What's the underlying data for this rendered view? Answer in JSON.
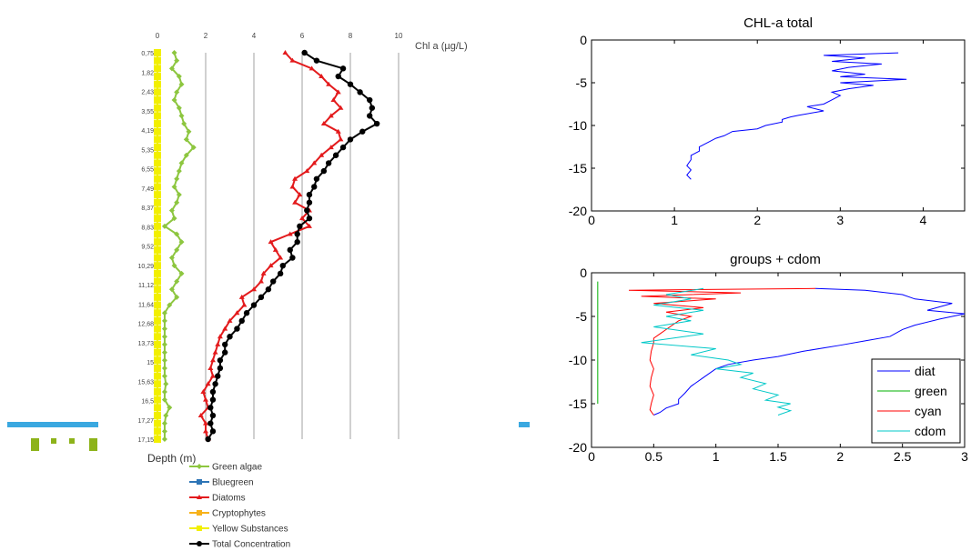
{
  "colors": {
    "green": "#8dc63f",
    "bluegreen": "#2e75b6",
    "diatoms": "#e31a1c",
    "cryptophytes": "#f7b21a",
    "yellow": "#f2ef00",
    "total": "#000000",
    "line_blue": "#0000ff",
    "line_green": "#00b000",
    "line_red": "#ff0000",
    "line_cyan": "#00c8c8",
    "accent_bar": "#3aa8e0",
    "accent_green": "#8db31a"
  },
  "chart_data": [
    {
      "type": "line",
      "title": "",
      "xlabel": "Chl a (µg/L)",
      "ylabel": "Depth (m)",
      "xlim": [
        0,
        10
      ],
      "x_ticks": [
        0,
        2,
        4,
        6,
        8,
        10
      ],
      "depth_labels": [
        "0,75",
        "1,82",
        "2,43",
        "3,55",
        "4,19",
        "5,35",
        "6,55",
        "7,49",
        "8,37",
        "8,83",
        "9,52",
        "10,29",
        "11,12",
        "11,64",
        "12,68",
        "13,73",
        "15",
        "15,63",
        "16,5",
        "17,27",
        "17,15"
      ],
      "grid": "vertical",
      "legend_position": "bottom",
      "series": [
        {
          "name": "Green algae",
          "values": [
            0.7,
            0.8,
            0.6,
            0.9,
            1.0,
            0.8,
            0.7,
            0.9,
            1.0,
            1.1,
            1.3,
            1.2,
            1.5,
            1.2,
            1.0,
            0.9,
            0.8,
            0.7,
            0.9,
            0.8,
            0.6,
            0.7,
            0.3,
            0.8,
            1.0,
            0.8,
            0.6,
            0.7,
            1.0,
            0.8,
            0.6,
            0.8,
            0.5,
            0.3,
            0.3,
            0.3,
            0.3,
            0.3,
            0.3,
            0.3,
            0.3,
            0.3,
            0.35,
            0.3,
            0.3,
            0.5,
            0.35,
            0.3,
            0.3,
            0.3
          ]
        },
        {
          "name": "Bluegreen",
          "values": [
            0,
            0,
            0,
            0,
            0,
            0,
            0,
            0,
            0,
            0,
            0,
            0,
            0,
            0,
            0,
            0,
            0,
            0,
            0,
            0,
            0,
            0,
            0,
            0,
            0,
            0,
            0,
            0,
            0,
            0,
            0,
            0,
            0,
            0,
            0,
            0,
            0,
            0,
            0,
            0,
            0,
            0,
            0,
            0,
            0,
            0,
            0,
            0,
            0,
            0
          ]
        },
        {
          "name": "Diatoms",
          "values": [
            5.3,
            5.6,
            6.4,
            6.8,
            7.1,
            7.5,
            7.3,
            7.6,
            7.2,
            6.9,
            7.5,
            7.6,
            7.2,
            6.8,
            6.5,
            6.2,
            5.7,
            5.6,
            5.9,
            5.7,
            6.3,
            6.0,
            6.3,
            5.5,
            4.7,
            4.9,
            5.1,
            4.7,
            4.4,
            4.3,
            4.0,
            3.5,
            3.6,
            3.3,
            3.0,
            2.8,
            2.6,
            2.5,
            2.4,
            2.3,
            2.2,
            2.3,
            2.1,
            1.9,
            2.0,
            2.1,
            1.8,
            2.0,
            2.0,
            2.1
          ]
        },
        {
          "name": "Cryptophytes",
          "values": [
            0,
            0,
            0,
            0,
            0,
            0,
            0,
            0,
            0,
            0,
            0,
            0,
            0,
            0,
            0,
            0,
            0,
            0,
            0,
            0,
            0,
            0,
            0,
            0,
            0,
            0,
            0,
            0,
            0,
            0,
            0,
            0,
            0,
            0,
            0,
            0,
            0,
            0,
            0,
            0,
            0,
            0,
            0,
            0,
            0,
            0,
            0,
            0,
            0,
            0
          ]
        },
        {
          "name": "Yellow Substances",
          "values": [
            0,
            0,
            0,
            0,
            0,
            0,
            0,
            0,
            0,
            0,
            0,
            0,
            0,
            0,
            0,
            0,
            0,
            0,
            0,
            0,
            0,
            0,
            0,
            0,
            0,
            0,
            0,
            0,
            0,
            0,
            0,
            0,
            0,
            0,
            0,
            0,
            0,
            0,
            0,
            0,
            0,
            0,
            0,
            0,
            0,
            0,
            0,
            0,
            0,
            0
          ]
        },
        {
          "name": "Total Concentration",
          "values": [
            6.1,
            6.6,
            7.7,
            7.5,
            8.0,
            8.4,
            8.8,
            8.9,
            8.8,
            9.1,
            8.5,
            8.0,
            7.7,
            7.4,
            7.1,
            6.9,
            6.6,
            6.5,
            6.3,
            6.3,
            6.2,
            6.3,
            5.9,
            5.8,
            5.8,
            5.5,
            5.6,
            5.2,
            5.1,
            4.8,
            4.6,
            4.3,
            4.0,
            3.7,
            3.5,
            3.3,
            3.0,
            2.8,
            2.8,
            2.6,
            2.6,
            2.5,
            2.4,
            2.3,
            2.3,
            2.2,
            2.3,
            2.2,
            2.3,
            2.1
          ]
        }
      ]
    },
    {
      "type": "line",
      "title": "CHL-a total",
      "xlim": [
        0,
        4.5
      ],
      "ylim": [
        -20,
        0
      ],
      "x_ticks": [
        0,
        1,
        2,
        3,
        4
      ],
      "y_ticks": [
        0,
        -5,
        -10,
        -15,
        -20
      ],
      "series": [
        {
          "name": "",
          "x": [
            3.7,
            2.8,
            3.3,
            2.9,
            3.5,
            3.1,
            2.9,
            3.3,
            3.0,
            3.8,
            3.0,
            3.4,
            3.1,
            2.9,
            3.0,
            2.9,
            2.8,
            2.6,
            2.8,
            2.5,
            2.4,
            2.3,
            2.3,
            2.1,
            2.0,
            1.7,
            1.6,
            1.5,
            1.3,
            1.3,
            1.2,
            1.2,
            1.15,
            1.2,
            1.15,
            1.2
          ],
          "y": [
            -1.5,
            -1.8,
            -2.1,
            -2.5,
            -2.8,
            -3.2,
            -3.6,
            -4.0,
            -4.3,
            -4.6,
            -5.0,
            -5.3,
            -5.7,
            -6.1,
            -6.5,
            -7.0,
            -7.5,
            -7.8,
            -8.3,
            -8.8,
            -9.0,
            -9.3,
            -9.6,
            -10.0,
            -10.4,
            -10.7,
            -11.2,
            -11.5,
            -12.5,
            -13.0,
            -13.5,
            -14.0,
            -14.7,
            -15.2,
            -15.8,
            -16.3
          ]
        }
      ]
    },
    {
      "type": "line",
      "title": "groups + cdom",
      "xlim": [
        0,
        3
      ],
      "ylim": [
        -20,
        0
      ],
      "x_ticks": [
        0,
        0.5,
        1,
        1.5,
        2,
        2.5,
        3
      ],
      "y_ticks": [
        0,
        -5,
        -10,
        -15,
        -20
      ],
      "legend_position": "bottom-right",
      "series": [
        {
          "name": "diat",
          "x": [
            1.8,
            2.2,
            2.5,
            2.6,
            2.9,
            2.7,
            3.0,
            2.8,
            2.6,
            2.5,
            2.4,
            2.2,
            2.0,
            1.7,
            1.5,
            1.3,
            1.1,
            1.0,
            0.9,
            0.8,
            0.75,
            0.7,
            0.7,
            0.6,
            0.55,
            0.5
          ],
          "y": [
            -1.8,
            -2.0,
            -2.5,
            -3.0,
            -3.5,
            -4.3,
            -4.7,
            -5.3,
            -6.0,
            -6.5,
            -7.3,
            -7.8,
            -8.3,
            -9.0,
            -9.6,
            -10.0,
            -10.5,
            -11.0,
            -12.0,
            -13.0,
            -13.8,
            -14.5,
            -15.0,
            -15.5,
            -16.0,
            -16.3
          ]
        },
        {
          "name": "green",
          "x": [
            0.05,
            0.05,
            0.05,
            0.05,
            0.05,
            0.05,
            0.05,
            0.05
          ],
          "y": [
            -1.0,
            -3.0,
            -5.0,
            -7.0,
            -9.0,
            -11.0,
            -13.0,
            -15.0
          ]
        },
        {
          "name": "cyan",
          "x": [
            1.8,
            0.3,
            1.2,
            0.4,
            1.0,
            0.5,
            0.9,
            0.6,
            0.8,
            0.7,
            0.65,
            0.6,
            0.55,
            0.5,
            0.5,
            0.48,
            0.47,
            0.5,
            0.48,
            0.47,
            0.5,
            0.48,
            0.47,
            0.5
          ],
          "y": [
            -1.8,
            -2.0,
            -2.3,
            -2.7,
            -3.0,
            -3.5,
            -4.0,
            -4.5,
            -5.0,
            -5.5,
            -6.0,
            -6.5,
            -7.0,
            -7.5,
            -8.0,
            -9.0,
            -10.0,
            -11.0,
            -12.0,
            -13.0,
            -14.0,
            -15.0,
            -15.7,
            -16.3
          ]
        },
        {
          "name": "cdom",
          "x": [
            0.9,
            0.6,
            0.8,
            0.5,
            0.9,
            0.6,
            0.8,
            0.5,
            0.9,
            0.4,
            1.0,
            0.8,
            1.1,
            1.2,
            1.0,
            1.3,
            1.2,
            1.4,
            1.3,
            1.5,
            1.4,
            1.6,
            1.5,
            1.6,
            1.5
          ],
          "y": [
            -1.8,
            -2.5,
            -3.0,
            -3.7,
            -4.3,
            -5.0,
            -5.5,
            -6.2,
            -7.0,
            -8.0,
            -8.7,
            -9.4,
            -10.0,
            -10.5,
            -11.0,
            -11.5,
            -12.0,
            -12.7,
            -13.3,
            -14.0,
            -14.6,
            -15.0,
            -15.4,
            -15.8,
            -16.3
          ]
        }
      ]
    }
  ]
}
